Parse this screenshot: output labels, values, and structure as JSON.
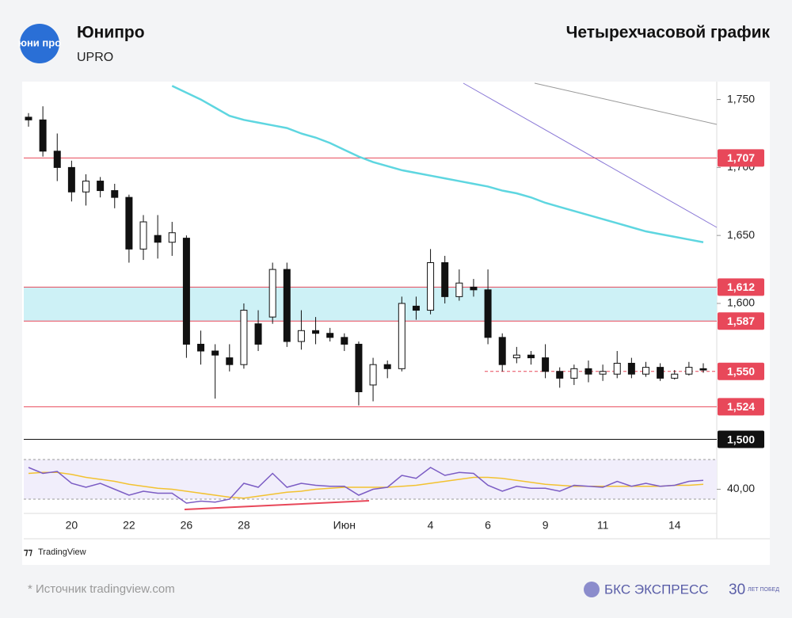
{
  "header": {
    "logo": "юни про",
    "title": "Юнипро",
    "ticker": "UPRO",
    "chart_kind": "Четырехчасовой график"
  },
  "chart_data": {
    "type": "candlestick",
    "categories": [
      null,
      null,
      null,
      "20",
      null,
      null,
      null,
      "22",
      null,
      null,
      null,
      "26",
      null,
      null,
      null,
      "28",
      null,
      null,
      null,
      null,
      null,
      null,
      "Июн",
      null,
      null,
      null,
      null,
      null,
      "4",
      null,
      null,
      null,
      "6",
      null,
      null,
      null,
      "9",
      null,
      null,
      null,
      "11",
      null,
      null,
      null,
      null,
      "14",
      null,
      null
    ],
    "open": [
      1737,
      1735,
      1712,
      1700,
      1682,
      1690,
      1683,
      1678,
      1640,
      1650,
      1645,
      1648,
      1570,
      1565,
      1560,
      1555,
      1585,
      1590,
      1625,
      1572,
      1580,
      1578,
      1575,
      1570,
      1540,
      1555,
      1552,
      1598,
      1595,
      1630,
      1605,
      1612,
      1610,
      1575,
      1560,
      1562,
      1560,
      1550,
      1545,
      1552,
      1548,
      1548,
      1556,
      1548,
      1553,
      1545,
      1548,
      1552
    ],
    "high": [
      1740,
      1745,
      1725,
      1705,
      1695,
      1693,
      1688,
      1680,
      1665,
      1665,
      1660,
      1650,
      1580,
      1570,
      1570,
      1600,
      1595,
      1630,
      1630,
      1595,
      1590,
      1582,
      1578,
      1572,
      1560,
      1558,
      1605,
      1605,
      1640,
      1635,
      1625,
      1618,
      1625,
      1578,
      1568,
      1565,
      1570,
      1553,
      1555,
      1558,
      1555,
      1565,
      1560,
      1557,
      1556,
      1551,
      1557,
      1556
    ],
    "low": [
      1730,
      1708,
      1690,
      1675,
      1672,
      1678,
      1670,
      1630,
      1632,
      1633,
      1635,
      1560,
      1555,
      1530,
      1550,
      1552,
      1565,
      1585,
      1568,
      1566,
      1570,
      1572,
      1565,
      1525,
      1528,
      1545,
      1550,
      1588,
      1592,
      1600,
      1602,
      1605,
      1570,
      1550,
      1556,
      1555,
      1545,
      1538,
      1540,
      1542,
      1543,
      1545,
      1545,
      1546,
      1543,
      1544,
      1547,
      1549
    ],
    "close": [
      1735,
      1712,
      1700,
      1682,
      1690,
      1683,
      1678,
      1640,
      1660,
      1645,
      1652,
      1570,
      1565,
      1562,
      1555,
      1595,
      1570,
      1625,
      1572,
      1580,
      1578,
      1575,
      1570,
      1535,
      1555,
      1552,
      1600,
      1595,
      1630,
      1605,
      1615,
      1610,
      1575,
      1555,
      1562,
      1560,
      1550,
      1545,
      1552,
      1548,
      1550,
      1556,
      1548,
      1553,
      1545,
      1548,
      1553,
      1551
    ],
    "ma": {
      "color": "#5ed6e0",
      "values": [
        null,
        null,
        null,
        null,
        null,
        null,
        null,
        null,
        null,
        null,
        1760,
        1755,
        1750,
        1744,
        1738,
        1735,
        1733,
        1731,
        1729,
        1725,
        1722,
        1718,
        1713,
        1708,
        1704,
        1701,
        1698,
        1696,
        1694,
        1692,
        1690,
        1688,
        1686,
        1683,
        1681,
        1678,
        1674,
        1671,
        1668,
        1665,
        1662,
        1659,
        1656,
        1653,
        1651,
        1649,
        1647,
        1645
      ]
    },
    "ylim": [
      1491,
      1762
    ],
    "yticks": [
      {
        "value": 1750,
        "label": "1,750"
      },
      {
        "value": 1700,
        "label": "1,700"
      },
      {
        "value": 1650,
        "label": "1,650"
      },
      {
        "value": 1600,
        "label": "1,600"
      }
    ],
    "levels": [
      {
        "value": 1707,
        "label": "1,707",
        "color": "#e8485a",
        "style": "solid"
      },
      {
        "value": 1612,
        "label": "1,612",
        "color": "#e8485a",
        "style": "solid"
      },
      {
        "value": 1587,
        "label": "1,587",
        "color": "#e8485a",
        "style": "solid"
      },
      {
        "value": 1550,
        "label": "1,550",
        "color": "#e8485a",
        "style": "dashed"
      },
      {
        "value": 1524,
        "label": "1,524",
        "color": "#e8485a",
        "style": "solid"
      },
      {
        "value": 1500,
        "label": "1,500",
        "color": "#111111",
        "style": "solid"
      }
    ],
    "rsi": {
      "color": "#7b5cc4",
      "values": [
        62,
        56,
        58,
        46,
        42,
        46,
        40,
        34,
        38,
        36,
        36,
        26,
        28,
        27,
        30,
        46,
        42,
        56,
        42,
        46,
        44,
        43,
        43,
        34,
        40,
        42,
        54,
        51,
        62,
        54,
        57,
        56,
        44,
        38,
        43,
        41,
        41,
        38,
        44,
        43,
        42,
        48,
        43,
        46,
        43,
        44,
        48,
        49
      ],
      "signal": {
        "color": "#f2c230",
        "values": [
          56,
          57,
          57,
          55,
          52,
          50,
          48,
          45,
          43,
          41,
          40,
          38,
          36,
          34,
          32,
          31,
          33,
          35,
          37,
          38,
          40,
          41,
          42,
          42,
          42,
          42,
          43,
          44,
          46,
          48,
          50,
          52,
          52,
          51,
          49,
          47,
          45,
          44,
          43,
          43,
          43,
          43,
          43,
          43,
          43,
          44,
          44,
          45
        ]
      },
      "ylim": [
        18,
        74
      ],
      "bands": [
        30,
        70
      ],
      "yticks": [
        {
          "value": 40,
          "label": "40,00"
        }
      ]
    }
  },
  "footer": {
    "brand": "TradingView",
    "source": "* Источник tradingview.com",
    "publisher": "БКС ЭКСПРЕСС",
    "anniversary_num": "30",
    "anniversary_text": "ЛЕТ ПОБЕД"
  }
}
